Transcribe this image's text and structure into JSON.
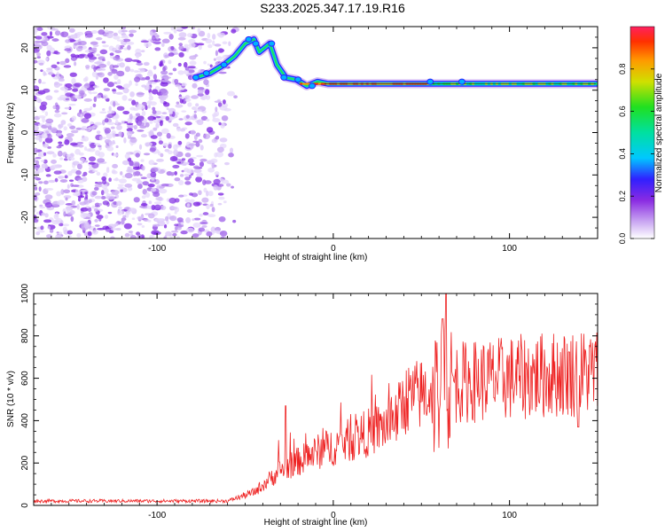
{
  "figure": {
    "title": "S233.2025.347.17.19.R16"
  },
  "chart_data": [
    {
      "type": "heatmap",
      "name": "spectrogram",
      "title": "S233.2025.347.17.19.R16",
      "xlabel": "Height of straight line (km)",
      "ylabel": "Frequency (Hz)",
      "xlim": [
        -170,
        150
      ],
      "ylim": [
        -25,
        25
      ],
      "xticks": [
        -100,
        0,
        100
      ],
      "xtick_labels": [
        "-100",
        "0",
        "100"
      ],
      "yticks": [
        -20,
        -10,
        0,
        10,
        20
      ],
      "ytick_labels": [
        "-20",
        "-10",
        "0",
        "10",
        "20"
      ],
      "colorbar": {
        "label": "Normalized spectral amplitude",
        "range": [
          0,
          1
        ],
        "ticks": [
          0.0,
          0.2,
          0.4,
          0.6,
          0.8
        ],
        "tick_labels": [
          "0.0",
          "0.2",
          "0.4",
          "0.6",
          "0.8"
        ],
        "colormap": "rainbow (white-violet-blue-cyan-green-yellow-orange-red)"
      },
      "features": {
        "noise_region_x": [
          -170,
          -55
        ],
        "tone_track": [
          {
            "x": -78,
            "f": 13
          },
          {
            "x": -70,
            "f": 14
          },
          {
            "x": -62,
            "f": 16
          },
          {
            "x": -56,
            "f": 18
          },
          {
            "x": -50,
            "f": 21
          },
          {
            "x": -45,
            "f": 22
          },
          {
            "x": -42,
            "f": 19
          },
          {
            "x": -36,
            "f": 21
          },
          {
            "x": -32,
            "f": 16
          },
          {
            "x": -27,
            "f": 13
          },
          {
            "x": -21,
            "f": 12.5
          },
          {
            "x": -15,
            "f": 11
          },
          {
            "x": -9,
            "f": 12
          },
          {
            "x": -3,
            "f": 11.5
          },
          {
            "x": 150,
            "f": 11.5
          }
        ],
        "steady_frequency_hz": 11.5
      }
    },
    {
      "type": "line",
      "name": "snr",
      "xlabel": "Height of straight line (km)",
      "ylabel": "SNR (10 * v/v)",
      "xlim": [
        -170,
        150
      ],
      "ylim": [
        0,
        1000
      ],
      "xticks": [
        -100,
        0,
        100
      ],
      "xtick_labels": [
        "-100",
        "0",
        "100"
      ],
      "yticks": [
        0,
        200,
        400,
        600,
        800,
        1000
      ],
      "ytick_labels": [
        "0",
        "200",
        "400",
        "600",
        "800",
        "1000"
      ],
      "color": "#ee2222",
      "trend": [
        {
          "x": -170,
          "snr": 20
        },
        {
          "x": -60,
          "snr": 20
        },
        {
          "x": -45,
          "snr": 60
        },
        {
          "x": -30,
          "snr": 160
        },
        {
          "x": -10,
          "snr": 240
        },
        {
          "x": 10,
          "snr": 300
        },
        {
          "x": 35,
          "snr": 380
        },
        {
          "x": 40,
          "snr": 480
        },
        {
          "x": 55,
          "snr": 520
        },
        {
          "x": 70,
          "snr": 560
        },
        {
          "x": 100,
          "snr": 580
        },
        {
          "x": 130,
          "snr": 600
        },
        {
          "x": 150,
          "snr": 610
        }
      ],
      "peaks": [
        {
          "x": -27,
          "snr": 470
        },
        {
          "x": 62,
          "snr": 880
        },
        {
          "x": 64,
          "snr": 1000
        },
        {
          "x": 63,
          "snr": 120
        }
      ]
    }
  ]
}
